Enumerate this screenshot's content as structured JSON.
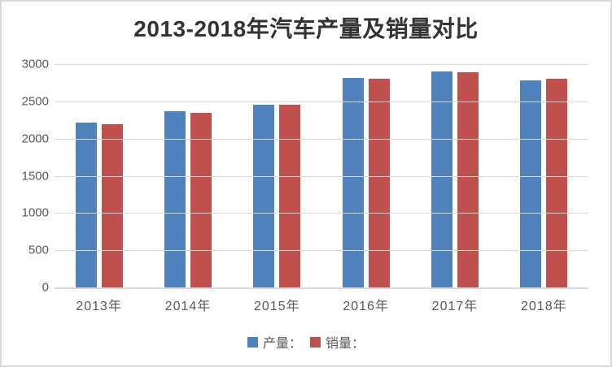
{
  "title": "2013-2018年汽车产量及销量对比",
  "colors": {
    "production_bar": "#4F81BD",
    "sales_bar": "#C0504D",
    "gridline": "#D9D9D9",
    "axis_text": "#595959",
    "title_text": "#333333",
    "canvas_border": "#D9D9D9",
    "background": "#FFFFFF"
  },
  "y_axis": {
    "tick_labels": [
      "3000",
      "2500",
      "2000",
      "1500",
      "1000",
      "500",
      "0"
    ]
  },
  "legend": {
    "items": [
      {
        "key": "production",
        "label": "产量：",
        "color": "#4F81BD"
      },
      {
        "key": "sales",
        "label": "销量：",
        "color": "#C0504D"
      }
    ]
  },
  "chart_data": {
    "type": "bar",
    "title": "2013-2018年汽车产量及销量对比",
    "categories": [
      "2013年",
      "2014年",
      "2015年",
      "2016年",
      "2017年",
      "2018年"
    ],
    "series": [
      {
        "key": "production",
        "name": "产量：",
        "color": "#4F81BD",
        "values": [
          2212,
          2372,
          2450,
          2812,
          2902,
          2781
        ]
      },
      {
        "key": "sales",
        "name": "销量：",
        "color": "#C0504D",
        "values": [
          2198,
          2349,
          2460,
          2803,
          2888,
          2808
        ]
      }
    ],
    "xlabel": "",
    "ylabel": "",
    "ylim": [
      0,
      3000
    ],
    "y_tick_step": 500,
    "grid": true,
    "legend_position": "bottom"
  }
}
